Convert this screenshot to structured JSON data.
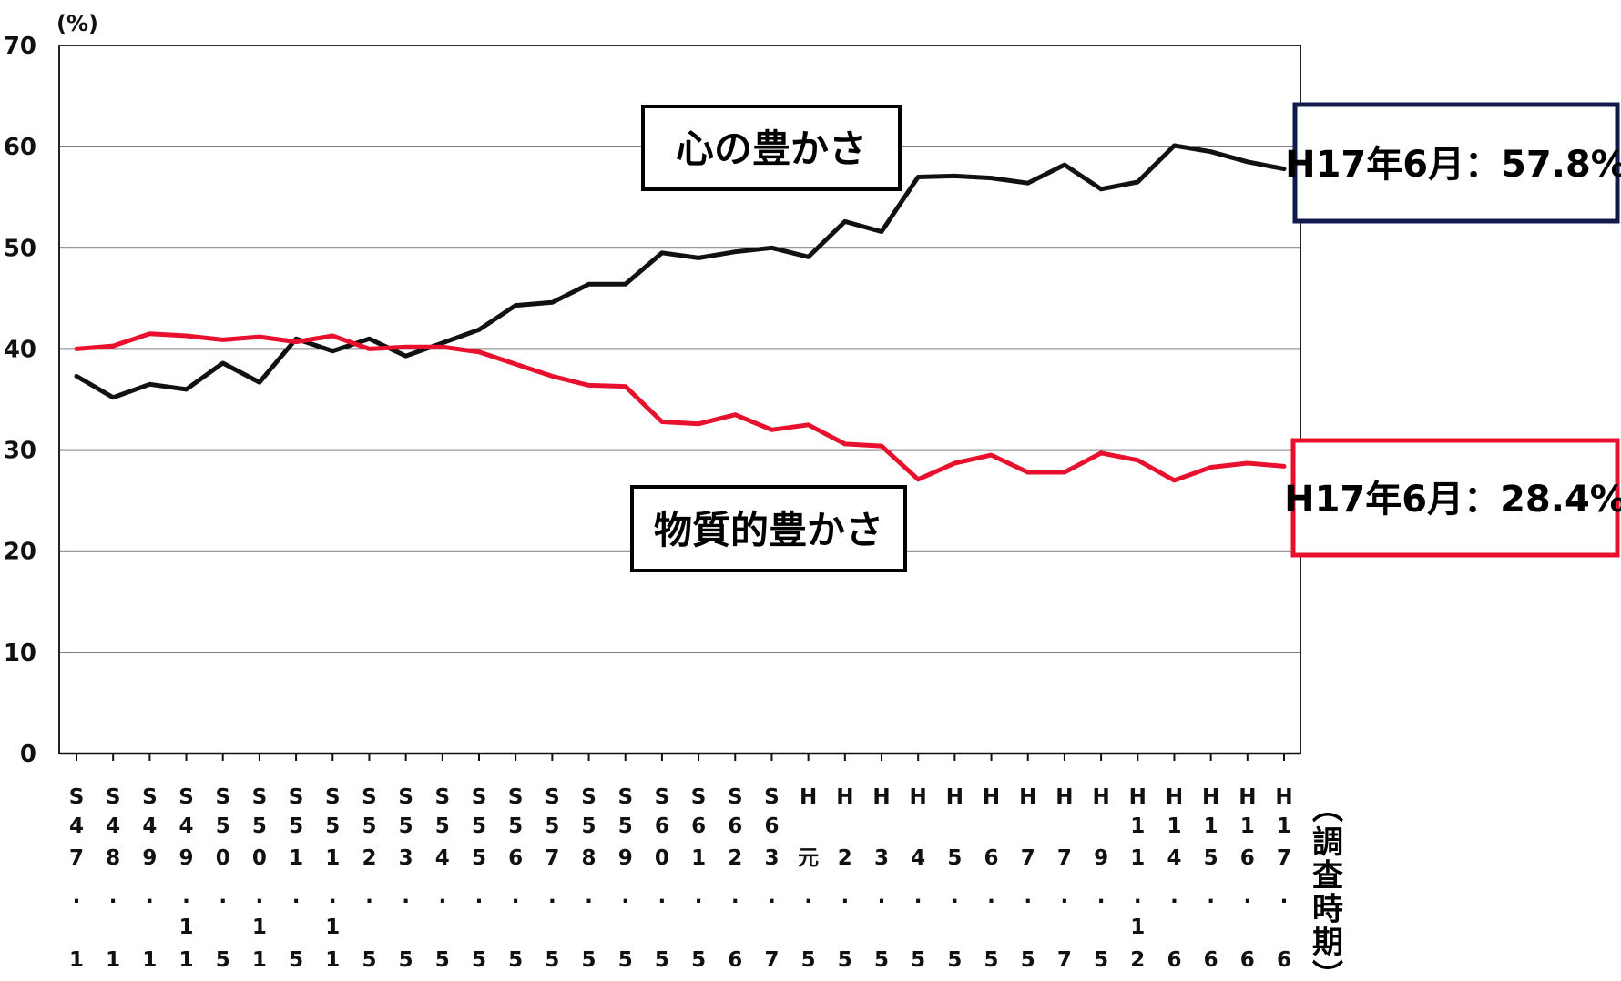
{
  "chart_data": {
    "type": "line",
    "y_unit": "(%)",
    "ylim": [
      0,
      70
    ],
    "yticks": [
      0,
      10,
      20,
      30,
      40,
      50,
      60,
      70
    ],
    "grid": true,
    "x_axis_title": "(調査時期)",
    "x": [
      "S47.1",
      "S48.1",
      "S49.1",
      "S49.11",
      "S50.5",
      "S50.11",
      "S51.5",
      "S51.11",
      "S52.5",
      "S53.5",
      "S54.5",
      "S55.5",
      "S56.5",
      "S57.5",
      "S58.5",
      "S59.5",
      "S60.5",
      "S61.5",
      "S62.6",
      "S63.7",
      "H元.5",
      "H2.5",
      "H3.5",
      "H4.5",
      "H5.5",
      "H6.5",
      "H7.5",
      "H7.7",
      "H9.5",
      "H11.12",
      "H14.6",
      "H15.6",
      "H16.6",
      "H17.6"
    ],
    "series": [
      {
        "name": "心の豊かさ",
        "color": "#111111",
        "values": [
          37.3,
          35.2,
          36.5,
          36.0,
          38.6,
          36.7,
          41.0,
          39.8,
          41.0,
          39.3,
          40.6,
          41.9,
          44.3,
          44.6,
          46.4,
          46.4,
          49.5,
          49.0,
          49.6,
          50.0,
          49.1,
          52.6,
          51.6,
          57.0,
          57.1,
          56.9,
          56.4,
          58.2,
          55.8,
          56.5,
          60.1,
          59.5,
          58.5,
          57.8
        ]
      },
      {
        "name": "物質的豊かさ",
        "color": "#e8102c",
        "values": [
          40.0,
          40.3,
          41.5,
          41.3,
          40.9,
          41.2,
          40.7,
          41.3,
          40.0,
          40.2,
          40.2,
          39.7,
          38.5,
          37.3,
          36.4,
          36.3,
          32.8,
          32.6,
          33.5,
          32.0,
          32.5,
          30.6,
          30.4,
          27.1,
          28.7,
          29.5,
          27.8,
          27.8,
          29.7,
          29.0,
          27.0,
          28.3,
          28.7,
          28.4
        ]
      }
    ],
    "annotations": [
      {
        "series": 0,
        "text": "H17年6月：57.8%"
      },
      {
        "series": 1,
        "text": "H17年6月：28.4%"
      }
    ]
  }
}
